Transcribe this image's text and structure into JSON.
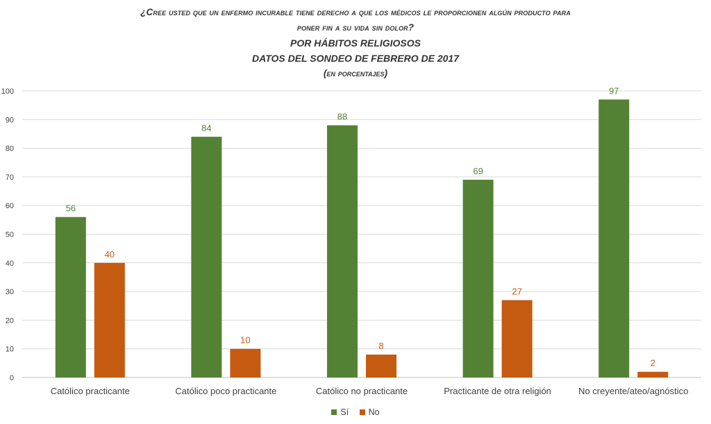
{
  "colors": {
    "si": "#548235",
    "no": "#c55a11",
    "grid": "#d9d9d9",
    "axis": "#bfbfbf"
  },
  "chart_data": {
    "type": "bar",
    "title_line1": "¿Cree usted que un enfermo incurable tiene derecho a que los médicos le proporcionen algún producto para",
    "title_line2": "poner fin a su vida sin dolor?",
    "title_line3": "POR HÁBITOS RELIGIOSOS",
    "title_line4": "DATOS DEL SONDEO DE FEBRERO DE 2017",
    "title_line5": "(en porcentajes)",
    "categories": [
      "Católico practicante",
      "Católico poco practicante",
      "Católico no practicante",
      "Practicante de otra religión",
      "No creyente/ateo/agnóstico"
    ],
    "series": [
      {
        "name": "Sí",
        "values": [
          56,
          84,
          88,
          69,
          97
        ]
      },
      {
        "name": "No",
        "values": [
          40,
          10,
          8,
          27,
          2
        ]
      }
    ],
    "ylim": [
      0,
      100
    ],
    "yticks": [
      0,
      10,
      20,
      30,
      40,
      50,
      60,
      70,
      80,
      90,
      100
    ],
    "grid": true,
    "legend": "bottom-center",
    "xlabel": "",
    "ylabel": ""
  }
}
